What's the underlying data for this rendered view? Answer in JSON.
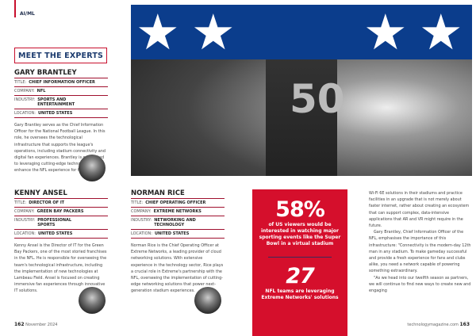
{
  "section": "AI/ML",
  "heading": "MEET THE EXPERTS",
  "experts": [
    {
      "name": "GARY BRANTLEY",
      "title_label": "TITLE:",
      "title": "CHIEF INFORMATION OFFICER",
      "company_label": "COMPANY:",
      "company": "NFL",
      "industry_label": "INDUSTRY:",
      "industry": "SPORTS AND ENTERTAINMENT",
      "location_label": "LOCATION:",
      "location": "UNITED STATES",
      "bio": "Gary Brantley serves as the Chief Information Officer for the National Football League. In this role, he oversees the technological infrastructure that supports the league's operations, including stadium connectivity and digital fan experiences. Brantley is committed to leveraging cutting-edge technology to enhance the NFL experience for fans."
    },
    {
      "name": "KENNY ANSEL",
      "title_label": "TITLE:",
      "title": "DIRECTOR OF IT",
      "company_label": "COMPANY:",
      "company": "GREEN BAY PACKERS",
      "industry_label": "INDUSTRY:",
      "industry": "PROFESSIONAL SPORTS",
      "location_label": "LOCATION:",
      "location": "UNITED STATES",
      "bio": "Kenny Ansel is the Director of IT for the Green Bay Packers, one of the most storied franchises in the NFL. He is responsible for overseeing the team's technological infrastructure, including the implementation of new technologies at Lambeau Field. Ansel is focused on creating immersive fan experiences through innovative IT solutions."
    },
    {
      "name": "NORMAN RICE",
      "title_label": "TITLE:",
      "title": "CHIEF OPERATING OFFICER",
      "company_label": "COMPANY:",
      "company": "EXTREME NETWORKS",
      "industry_label": "INDUSTRY:",
      "industry": "NETWORKING AND TECHNOLOGY",
      "location_label": "LOCATION:",
      "location": "UNITED STATES",
      "bio": "Norman Rice is the Chief Operating Officer at Extreme Networks, a leading provider of cloud networking solutions. With extensive experience in the technology sector, Rice plays a crucial role in Extreme's partnership with the NFL, overseeing the implementation of cutting-edge networking solutions that power next-generation stadium experiences."
    }
  ],
  "photo": {
    "jersey_number": "50"
  },
  "stats": [
    {
      "value": "58%",
      "text": "of US viewers would be interested in watching major sporting events like the Super Bowl in a virtual stadium"
    },
    {
      "value": "27",
      "text": "NFL teams are leveraging Extreme Networks' solutions"
    }
  ],
  "article": {
    "p1": "Wi-Fi 6E solutions in their stadiums and practice facilities in an upgrade that is not merely about faster internet, rather about creating an ecosystem that can support complex, data-intensive applications that AR and VR might require in the future.",
    "p2": "Gary Brantley, Chief Information Officer of the NFL, emphasises the importance of this infrastructure: \"Connectivity is the modern-day 12th man in any stadium. To make gameday successful and provide a fresh experience for fans and clubs alike, you need a network capable of powering something extraordinary.",
    "p3": "\"As we head into our twelfth season as partners, we will continue to find new ways to create new and engaging"
  },
  "footer": {
    "left_page": "162",
    "date": "November 2024",
    "site": "technologymagazine.com",
    "right_page": "163"
  },
  "colors": {
    "accent": "#d50f2c",
    "navy": "#0b3d8c"
  }
}
